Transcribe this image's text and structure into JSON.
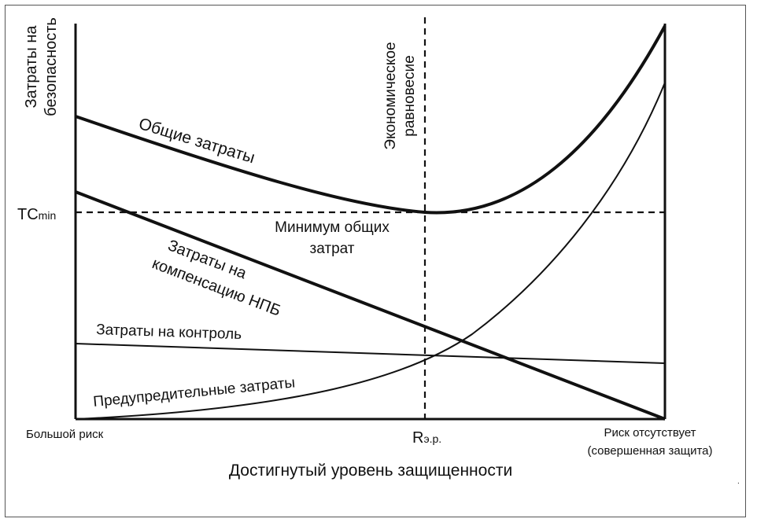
{
  "y_axis_title": [
    "Затраты на",
    "безопасность"
  ],
  "x_axis_title": "Достигнутый уровень защищенности",
  "x_tick_left": "Большой риск",
  "x_tick_mid": {
    "main": "R",
    "sub": "э.р."
  },
  "x_tick_right": [
    "Риск отсутствует",
    "(совершенная защита)"
  ],
  "y_tick_tcmin": {
    "main": "TC",
    "sub": "min"
  },
  "equilibrium_label": [
    "Экономическое",
    "равновесие"
  ],
  "min_total_label": [
    "Минимум общих",
    "затрат"
  ],
  "curve_labels": {
    "total": "Общие затраты",
    "compensation": [
      "Затраты на",
      "компенсацию НПБ"
    ],
    "control": "Затраты на контроль",
    "preventive": "Предупредительные затраты"
  },
  "colors": {
    "ink": "#111111",
    "frame": "#555555"
  }
}
